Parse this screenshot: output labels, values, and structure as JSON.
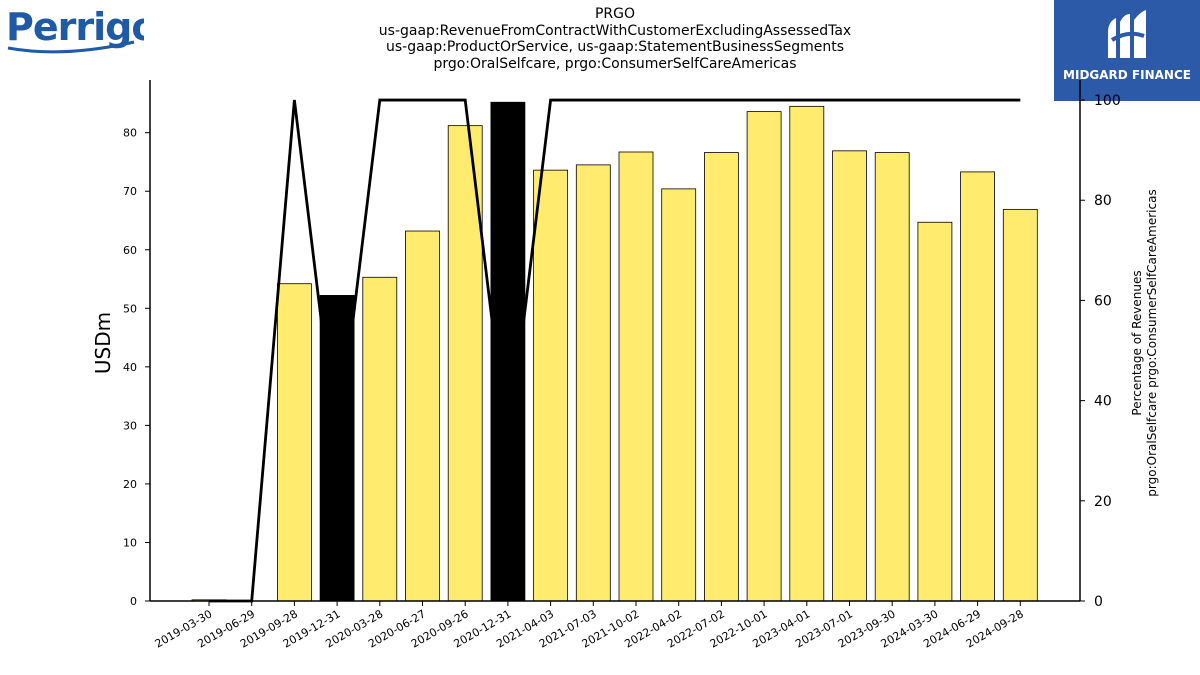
{
  "logos": {
    "left_text": "Perrigo",
    "right_text": "MIDGARD FINANCE"
  },
  "colors": {
    "bar_normal": "#ffec6e",
    "bar_highlight": "#000000",
    "line": "#000000",
    "logo_right_bg": "#2c5aa8",
    "logo_left": "#1f5aa6"
  },
  "chart_data": {
    "type": "bar",
    "title_lines": [
      "PRGO",
      "us-gaap:RevenueFromContractWithCustomerExcludingAssessedTax",
      "us-gaap:ProductOrService, us-gaap:StatementBusinessSegments",
      "prgo:OralSelfcare, prgo:ConsumerSelfCareAmericas"
    ],
    "ylabel": "USDm",
    "y2label_lines": [
      "Percentage of Revenues",
      "prgo:OralSelfcare prgo:ConsumerSelfCareAmericas"
    ],
    "ylim": [
      0,
      89
    ],
    "y2lim": [
      0,
      104
    ],
    "yticks": [
      0,
      10,
      20,
      30,
      40,
      50,
      60,
      70,
      80
    ],
    "y2ticks": [
      0,
      20,
      40,
      60,
      80,
      100
    ],
    "categories": [
      "2019-03-30",
      "2019-06-29",
      "2019-09-28",
      "2019-12-31",
      "2020-03-28",
      "2020-06-27",
      "2020-09-26",
      "2020-12-31",
      "2021-04-03",
      "2021-07-03",
      "2021-10-02",
      "2022-04-02",
      "2022-07-02",
      "2022-10-01",
      "2023-04-01",
      "2023-07-01",
      "2023-09-30",
      "2024-03-30",
      "2024-06-29",
      "2024-09-28"
    ],
    "series": [
      {
        "values": [
          0.2,
          0,
          54.2,
          52.2,
          55.3,
          63.2,
          81.2,
          85.2,
          73.6,
          74.5,
          76.7,
          70.4,
          76.6,
          83.6,
          84.5,
          76.9,
          76.6,
          64.7,
          73.3,
          66.9
        ],
        "highlight": [
          false,
          false,
          false,
          true,
          false,
          false,
          false,
          true,
          false,
          false,
          false,
          false,
          false,
          false,
          false,
          false,
          false,
          false,
          false,
          false
        ]
      },
      {
        "axis": "right",
        "values": [
          0,
          0,
          100,
          30,
          100,
          100,
          100,
          30,
          100,
          100,
          100,
          100,
          100,
          100,
          100,
          100,
          100,
          100,
          100,
          100
        ]
      }
    ]
  }
}
